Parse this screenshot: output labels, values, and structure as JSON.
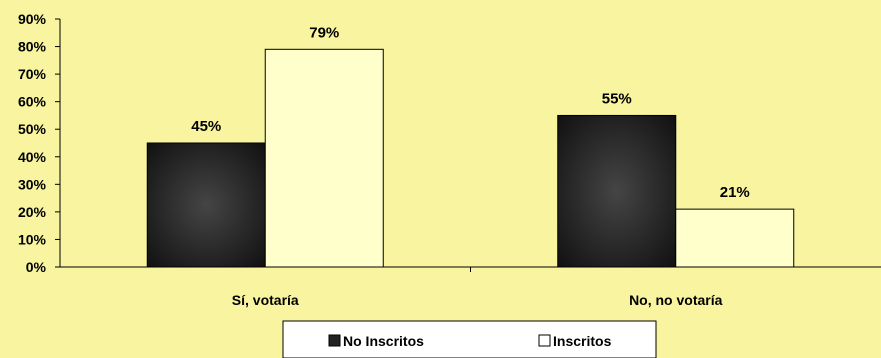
{
  "chart_data": {
    "type": "bar",
    "title": "",
    "xlabel": "",
    "ylabel": "",
    "categories": [
      "Sí, votaría",
      "No, no votaría"
    ],
    "series": [
      {
        "name": "No Inscritos",
        "values": [
          45,
          55
        ],
        "color": "#222222"
      },
      {
        "name": "Inscritos",
        "values": [
          79,
          21
        ],
        "color": "#FFFFCC"
      }
    ],
    "ylim": [
      0,
      90
    ],
    "yticks": [
      0,
      10,
      20,
      30,
      40,
      50,
      60,
      70,
      80,
      90
    ],
    "tick_suffix": "%",
    "data_label_suffix": "%",
    "grid": false,
    "legend_position": "bottom",
    "colors": {
      "background": "#F8F4A0",
      "axis": "#000000"
    }
  }
}
